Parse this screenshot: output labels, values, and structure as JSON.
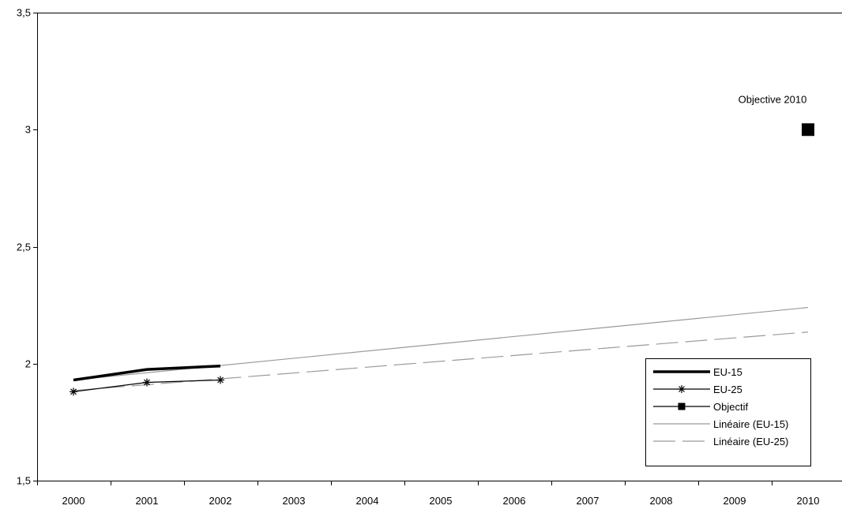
{
  "chart_data": {
    "type": "line",
    "title": "",
    "xlabel": "",
    "ylabel": "",
    "categories": [
      "2000",
      "2001",
      "2002",
      "2003",
      "2004",
      "2005",
      "2006",
      "2007",
      "2008",
      "2009",
      "2010"
    ],
    "ylim": [
      1.5,
      3.5
    ],
    "yticks": [
      1.5,
      2,
      2.5,
      3,
      3.5
    ],
    "ytick_labels": [
      "1,5",
      "2",
      "2,5",
      "3",
      "3,5"
    ],
    "grid": false,
    "legend_position": "bottom-right",
    "series": [
      {
        "name": "EU-15",
        "style": "line-thick",
        "color": "#000000",
        "points": [
          [
            2000,
            1.93
          ],
          [
            2001,
            1.975
          ],
          [
            2002,
            1.99
          ]
        ]
      },
      {
        "name": "EU-25",
        "style": "line-star",
        "color": "#000000",
        "points": [
          [
            2000,
            1.88
          ],
          [
            2001,
            1.92
          ],
          [
            2002,
            1.93
          ]
        ]
      },
      {
        "name": "Objectif",
        "style": "square-marker",
        "color": "#000000",
        "points": [
          [
            2010,
            3.0
          ]
        ]
      },
      {
        "name": "Linéaire (EU-15)",
        "style": "trend-solid",
        "color": "#9a9a9a",
        "points": [
          [
            2000,
            1.93
          ],
          [
            2010,
            2.24
          ]
        ]
      },
      {
        "name": "Linéaire (EU-25)",
        "style": "trend-dashed",
        "color": "#9a9a9a",
        "points": [
          [
            2000,
            1.885
          ],
          [
            2010,
            2.135
          ]
        ]
      }
    ],
    "annotations": [
      {
        "text": "Objective 2010",
        "x": 2010,
        "y": 3.0
      }
    ]
  }
}
